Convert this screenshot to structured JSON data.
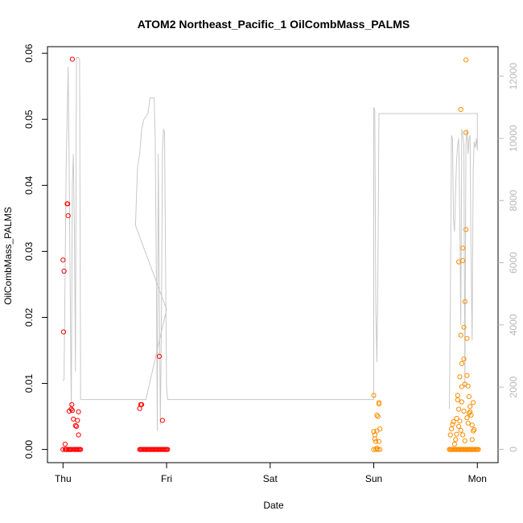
{
  "chart_data": {
    "type": "scatter",
    "title": "ATOM2 Northeast_Pacific_1 OilCombMass_PALMS",
    "xlabel": "Date",
    "ylabel": "OilCombMass_PALMS",
    "x_ticks": [
      "Thu",
      "Fri",
      "Sat",
      "Sun",
      "Mon"
    ],
    "y_ticks": [
      "0.00",
      "0.01",
      "0.02",
      "0.03",
      "0.04",
      "0.05",
      "0.06"
    ],
    "y2_ticks": [
      "0",
      "2000",
      "4000",
      "6000",
      "8000",
      "10000",
      "12000"
    ],
    "x_unit": "days since Thu 00:00",
    "xlim": [
      -0.15,
      4.2
    ],
    "ylim": [
      -0.002,
      0.061
    ],
    "y2lim": [
      -430,
      12950
    ],
    "y2_color": "#b8b8b8",
    "series": [
      {
        "name": "flight_1",
        "color": "#ff0000",
        "points": [
          [
            0.0,
            0.0287
          ],
          [
            0.01,
            0.027
          ],
          [
            0.005,
            0.0178
          ],
          [
            0.02,
            0.0008
          ],
          [
            0.03,
            0.0
          ],
          [
            0.04,
            0.0372
          ],
          [
            0.045,
            0.0372
          ],
          [
            0.05,
            0.0354
          ],
          [
            0.06,
            0.0058
          ],
          [
            0.07,
            0.0
          ],
          [
            0.08,
            0.0061
          ],
          [
            0.085,
            0.0068
          ],
          [
            0.09,
            0.0059
          ],
          [
            0.1,
            0.0046
          ],
          [
            0.11,
            0.0
          ],
          [
            0.09,
            0.0591
          ],
          [
            0.12,
            0.0036
          ],
          [
            0.13,
            0.0035
          ],
          [
            0.14,
            0.0044
          ],
          [
            0.15,
            0.0022
          ],
          [
            0.15,
            0.0057
          ],
          [
            0.14,
            0.0
          ],
          [
            0.0,
            0.0
          ],
          [
            0.02,
            0.0
          ],
          [
            0.05,
            0.0
          ],
          [
            0.06,
            0.0
          ],
          [
            0.08,
            0.0
          ],
          [
            0.1,
            0.0
          ],
          [
            0.12,
            0.0
          ],
          [
            0.13,
            0.0
          ],
          [
            0.15,
            0.0
          ],
          [
            0.16,
            0.0
          ],
          [
            0.17,
            0.0
          ],
          [
            0.035,
            0.0
          ],
          [
            0.075,
            0.0
          ]
        ]
      },
      {
        "name": "flight_2",
        "color": "#ff0000",
        "points": [
          [
            0.74,
            0.0062
          ],
          [
            0.75,
            0.0068
          ],
          [
            0.76,
            0.0068
          ],
          [
            0.74,
            0.0
          ],
          [
            0.75,
            0.0
          ],
          [
            0.76,
            0.0
          ],
          [
            0.77,
            0.0
          ],
          [
            0.78,
            0.0
          ],
          [
            0.79,
            0.0
          ],
          [
            0.8,
            0.0
          ],
          [
            0.81,
            0.0
          ],
          [
            0.82,
            0.0
          ],
          [
            0.83,
            0.0
          ],
          [
            0.84,
            0.0
          ],
          [
            0.85,
            0.0
          ],
          [
            0.86,
            0.0
          ],
          [
            0.87,
            0.0
          ],
          [
            0.88,
            0.0
          ],
          [
            0.89,
            0.0
          ],
          [
            0.9,
            0.0
          ],
          [
            0.91,
            0.0
          ],
          [
            0.92,
            0.0
          ],
          [
            0.93,
            0.0
          ],
          [
            0.94,
            0.0
          ],
          [
            0.95,
            0.0
          ],
          [
            0.96,
            0.0
          ],
          [
            0.97,
            0.0
          ],
          [
            0.98,
            0.0
          ],
          [
            0.99,
            0.0
          ],
          [
            1.0,
            0.0
          ],
          [
            1.01,
            0.0
          ],
          [
            0.93,
            0.0141
          ],
          [
            0.96,
            0.0044
          ]
        ]
      },
      {
        "name": "flight_3",
        "color": "#ff8c00",
        "points": [
          [
            3.0,
            0.0082
          ],
          [
            3.0,
            0.0027
          ],
          [
            3.01,
            0.0022
          ],
          [
            3.01,
            0.0016
          ],
          [
            3.02,
            0.0012
          ],
          [
            3.02,
            0.0
          ],
          [
            3.03,
            0.0028
          ],
          [
            3.03,
            0.0052
          ],
          [
            3.04,
            0.005
          ],
          [
            3.05,
            0.0069
          ],
          [
            3.05,
            0.0071
          ],
          [
            3.06,
            0.0031
          ],
          [
            3.05,
            0.0012
          ],
          [
            3.04,
            0.0
          ],
          [
            3.06,
            0.0
          ],
          [
            3.0,
            0.0
          ],
          [
            3.03,
            0.0002
          ]
        ]
      },
      {
        "name": "flight_4",
        "color": "#ff8c00",
        "points": [
          [
            3.73,
            0.0
          ],
          [
            3.74,
            0.0
          ],
          [
            3.75,
            0.0
          ],
          [
            3.76,
            0.0
          ],
          [
            3.77,
            0.0
          ],
          [
            3.78,
            0.0
          ],
          [
            3.79,
            0.0
          ],
          [
            3.8,
            0.0
          ],
          [
            3.81,
            0.0
          ],
          [
            3.82,
            0.0
          ],
          [
            3.83,
            0.0
          ],
          [
            3.84,
            0.0
          ],
          [
            3.85,
            0.0
          ],
          [
            3.86,
            0.0
          ],
          [
            3.87,
            0.0
          ],
          [
            3.88,
            0.0
          ],
          [
            3.89,
            0.0
          ],
          [
            3.9,
            0.0
          ],
          [
            3.91,
            0.0
          ],
          [
            3.92,
            0.0
          ],
          [
            3.93,
            0.0
          ],
          [
            3.94,
            0.0
          ],
          [
            3.95,
            0.0
          ],
          [
            3.96,
            0.0
          ],
          [
            3.97,
            0.0
          ],
          [
            3.98,
            0.0
          ],
          [
            3.99,
            0.0
          ],
          [
            4.0,
            0.0
          ],
          [
            4.01,
            0.0
          ],
          [
            3.74,
            0.0022
          ],
          [
            3.75,
            0.0031
          ],
          [
            3.76,
            0.0038
          ],
          [
            3.77,
            0.0042
          ],
          [
            3.78,
            0.0008
          ],
          [
            3.79,
            0.0015
          ],
          [
            3.8,
            0.0023
          ],
          [
            3.81,
            0.0082
          ],
          [
            3.82,
            0.0284
          ],
          [
            3.82,
            0.0061
          ],
          [
            3.83,
            0.011
          ],
          [
            3.84,
            0.0173
          ],
          [
            3.84,
            0.0515
          ],
          [
            3.85,
            0.013
          ],
          [
            3.85,
            0.0072
          ],
          [
            3.86,
            0.0305
          ],
          [
            3.86,
            0.0286
          ],
          [
            3.87,
            0.0185
          ],
          [
            3.87,
            0.0137
          ],
          [
            3.88,
            0.0099
          ],
          [
            3.88,
            0.0224
          ],
          [
            3.89,
            0.0333
          ],
          [
            3.89,
            0.048
          ],
          [
            3.89,
            0.059
          ],
          [
            3.9,
            0.0112
          ],
          [
            3.9,
            0.0048
          ],
          [
            3.91,
            0.0096
          ],
          [
            3.92,
            0.008
          ],
          [
            3.92,
            0.0055
          ],
          [
            3.93,
            0.0057
          ],
          [
            3.94,
            0.0052
          ],
          [
            3.95,
            0.0037
          ],
          [
            3.95,
            0.0015
          ],
          [
            3.96,
            0.0028
          ],
          [
            3.97,
            0.003
          ],
          [
            3.96,
            0.0071
          ],
          [
            3.83,
            0.0043
          ],
          [
            3.85,
            0.0095
          ],
          [
            3.87,
            0.0058
          ],
          [
            3.9,
            0.0168
          ],
          [
            3.81,
            0.0075
          ],
          [
            3.84,
            0.0029
          ],
          [
            3.86,
            0.0022
          ],
          [
            3.88,
            0.0013
          ],
          [
            3.91,
            0.004
          ],
          [
            3.93,
            0.0065
          ],
          [
            3.82,
            0.0035
          ],
          [
            3.8,
            0.0047
          ]
        ]
      }
    ],
    "altitude_line": {
      "color": "#c8c8c8",
      "points": [
        [
          0.0,
          2200
        ],
        [
          0.01,
          2250
        ],
        [
          0.03,
          9000
        ],
        [
          0.05,
          12300
        ],
        [
          0.06,
          9000
        ],
        [
          0.07,
          5000
        ],
        [
          0.08,
          1200
        ],
        [
          0.09,
          8500
        ],
        [
          0.1,
          9500
        ],
        [
          0.11,
          7000
        ],
        [
          0.12,
          2500
        ],
        [
          0.13,
          12600
        ],
        [
          0.15,
          12600
        ],
        [
          0.16,
          12550
        ],
        [
          0.17,
          1600
        ],
        [
          0.8,
          1600
        ],
        [
          1.0,
          4500
        ],
        [
          0.7,
          7200
        ],
        [
          0.71,
          8200
        ],
        [
          0.72,
          9100
        ],
        [
          0.73,
          9300
        ],
        [
          0.74,
          9500
        ],
        [
          0.76,
          10300
        ],
        [
          0.78,
          10600
        ],
        [
          0.8,
          10700
        ],
        [
          0.82,
          10800
        ],
        [
          0.84,
          11300
        ],
        [
          0.87,
          11300
        ],
        [
          0.88,
          11300
        ],
        [
          0.89,
          10000
        ],
        [
          0.9,
          6000
        ],
        [
          0.91,
          600
        ],
        [
          0.92,
          9500
        ],
        [
          0.93,
          5000
        ],
        [
          0.94,
          800
        ],
        [
          0.95,
          4000
        ],
        [
          0.96,
          9600
        ],
        [
          0.97,
          10300
        ],
        [
          0.98,
          10200
        ],
        [
          1.0,
          2000
        ],
        [
          1.01,
          1600
        ],
        [
          3.0,
          1600
        ],
        [
          3.0,
          11000
        ],
        [
          3.01,
          10900
        ],
        [
          3.02,
          4500
        ],
        [
          3.03,
          2800
        ],
        [
          3.04,
          5700
        ],
        [
          3.05,
          10800
        ],
        [
          4.0,
          10800
        ],
        [
          4.0,
          9600
        ],
        [
          3.99,
          10000
        ],
        [
          3.98,
          9700
        ],
        [
          3.97,
          9900
        ],
        [
          3.96,
          9000
        ],
        [
          3.95,
          3500
        ],
        [
          3.94,
          6000
        ],
        [
          3.93,
          10100
        ],
        [
          3.92,
          10000
        ],
        [
          3.91,
          9500
        ],
        [
          3.9,
          10300
        ],
        [
          3.89,
          9800
        ],
        [
          3.88,
          2000
        ],
        [
          3.87,
          9800
        ],
        [
          3.86,
          10100
        ],
        [
          3.85,
          10300
        ],
        [
          3.84,
          4000
        ],
        [
          3.83,
          7600
        ],
        [
          3.82,
          10000
        ],
        [
          3.81,
          9800
        ],
        [
          3.8,
          9300
        ],
        [
          3.79,
          8300
        ],
        [
          3.78,
          7000
        ],
        [
          3.77,
          7400
        ],
        [
          3.76,
          10000
        ],
        [
          3.75,
          10100
        ],
        [
          3.74,
          5000
        ],
        [
          3.73,
          1300
        ]
      ]
    }
  }
}
